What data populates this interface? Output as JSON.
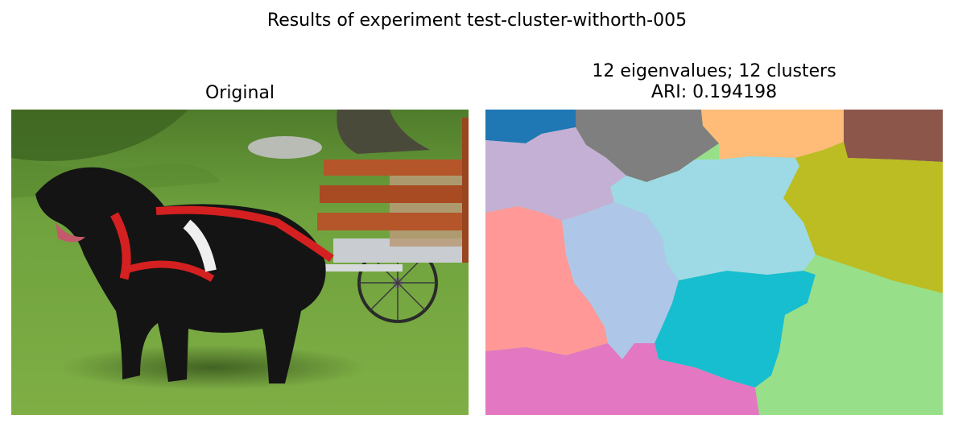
{
  "figure": {
    "suptitle": "Results of experiment test-cluster-withorth-005",
    "left_panel": {
      "title": "Original",
      "image_content": "black dog in red harness pulling a wooden cart on grass"
    },
    "right_panel": {
      "title_line1": "12 eigenvalues; 12 clusters",
      "title_line2": "ARI: 0.194198",
      "image_content": "segmentation map with 12 colored cluster regions"
    }
  },
  "colors": {
    "cluster_1": "#1f77b4",
    "cluster_2": "#7f7f7f",
    "cluster_3": "#ffbb78",
    "cluster_4": "#8c564b",
    "cluster_5": "#c5b0d5",
    "cluster_6": "#9edae5",
    "cluster_7": "#bcbd22",
    "cluster_8": "#ff9896",
    "cluster_9": "#aec7e8",
    "cluster_10": "#17becf",
    "cluster_11": "#98df8a",
    "cluster_12": "#e377c2",
    "grass": "#6a9a3a",
    "dog": "#141414",
    "harness": "#d42020",
    "cart_wood": "#b5552a"
  }
}
